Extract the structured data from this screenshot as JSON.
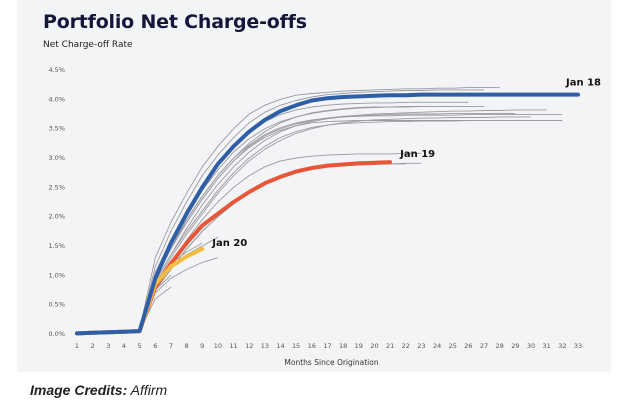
{
  "caption": {
    "prefix": "Image Credits:",
    "source": " Affirm"
  },
  "chart_data": {
    "type": "line",
    "title": "Portfolio Net Charge-offs",
    "subtitle": "Net Charge-off Rate",
    "xlabel": "Months Since Origination",
    "ylabel": "Net Charge-off Rate",
    "x_ticks": [
      "1",
      "2",
      "3",
      "4",
      "5",
      "6",
      "7",
      "8",
      "9",
      "10",
      "11",
      "12",
      "13",
      "14",
      "15",
      "16",
      "17",
      "18",
      "19",
      "20",
      "21",
      "22",
      "23",
      "24",
      "25",
      "26",
      "27",
      "28",
      "29",
      "30",
      "31",
      "32",
      "33"
    ],
    "y_ticks": [
      "0.0%",
      "0.5%",
      "1.0%",
      "1.5%",
      "2.0%",
      "2.5%",
      "3.0%",
      "3.5%",
      "4.0%",
      "4.5%"
    ],
    "xlim": [
      1,
      33
    ],
    "ylim": [
      0,
      4.5
    ],
    "grid": false,
    "series": [
      {
        "name": "Jan 18",
        "color": "#2f5ea8",
        "highlight": true,
        "x": [
          1,
          2,
          3,
          4,
          5,
          6,
          7,
          8,
          9,
          10,
          11,
          12,
          13,
          14,
          15,
          16,
          17,
          18,
          19,
          20,
          21,
          22,
          23,
          24,
          25,
          26,
          27,
          28,
          29,
          30,
          31,
          32,
          33
        ],
        "y": [
          0.01,
          0.02,
          0.03,
          0.04,
          0.05,
          0.95,
          1.55,
          2.05,
          2.5,
          2.9,
          3.2,
          3.45,
          3.65,
          3.8,
          3.9,
          3.98,
          4.02,
          4.04,
          4.05,
          4.06,
          4.07,
          4.07,
          4.08,
          4.08,
          4.08,
          4.08,
          4.08,
          4.08,
          4.08,
          4.08,
          4.08,
          4.08,
          4.08
        ]
      },
      {
        "name": "Jan 19",
        "color": "#e8563a",
        "highlight": true,
        "x": [
          1,
          2,
          3,
          4,
          5,
          6,
          7,
          8,
          9,
          10,
          11,
          12,
          13,
          14,
          15,
          16,
          17,
          18,
          19,
          20,
          21
        ],
        "y": [
          0.01,
          0.02,
          0.03,
          0.04,
          0.05,
          0.8,
          1.2,
          1.55,
          1.85,
          2.05,
          2.25,
          2.42,
          2.57,
          2.68,
          2.77,
          2.83,
          2.87,
          2.89,
          2.91,
          2.92,
          2.93
        ]
      },
      {
        "name": "Jan 20",
        "color": "#f3bd3f",
        "highlight": true,
        "x": [
          1,
          2,
          3,
          4,
          5,
          6,
          7,
          8,
          9
        ],
        "y": [
          0.01,
          0.02,
          0.03,
          0.04,
          0.05,
          0.85,
          1.15,
          1.32,
          1.45
        ]
      },
      {
        "color": "#9a9ba0",
        "x": [
          1,
          2,
          3,
          4,
          5,
          6,
          7,
          8,
          9,
          10,
          11,
          12,
          13,
          14,
          15,
          16,
          17,
          18,
          19,
          20,
          21,
          22,
          23,
          24,
          25,
          26,
          27,
          28
        ],
        "y": [
          0.01,
          0.02,
          0.03,
          0.05,
          0.08,
          1.3,
          1.9,
          2.4,
          2.85,
          3.2,
          3.5,
          3.75,
          3.9,
          4.0,
          4.07,
          4.1,
          4.12,
          4.14,
          4.15,
          4.16,
          4.17,
          4.18,
          4.18,
          4.19,
          4.19,
          4.2,
          4.2,
          4.2
        ]
      },
      {
        "color": "#9a9ba0",
        "x": [
          1,
          2,
          3,
          4,
          5,
          6,
          7,
          8,
          9,
          10,
          11,
          12,
          13,
          14,
          15,
          16,
          17,
          18,
          19,
          20,
          21,
          22,
          23,
          24,
          25,
          26,
          27
        ],
        "y": [
          0.01,
          0.02,
          0.03,
          0.05,
          0.07,
          1.15,
          1.75,
          2.25,
          2.7,
          3.05,
          3.35,
          3.6,
          3.78,
          3.9,
          3.98,
          4.04,
          4.08,
          4.1,
          4.12,
          4.13,
          4.14,
          4.15,
          4.15,
          4.16,
          4.16,
          4.16,
          4.16
        ]
      },
      {
        "color": "#9a9ba0",
        "x": [
          1,
          2,
          3,
          4,
          5,
          6,
          7,
          8,
          9,
          10,
          11,
          12,
          13,
          14,
          15,
          16,
          17,
          18,
          19,
          20,
          21,
          22,
          23,
          24,
          25,
          26,
          27,
          28,
          29,
          30,
          31,
          32
        ],
        "y": [
          0.01,
          0.02,
          0.03,
          0.04,
          0.06,
          1.0,
          1.5,
          1.95,
          2.35,
          2.7,
          3.0,
          3.22,
          3.4,
          3.52,
          3.6,
          3.65,
          3.68,
          3.7,
          3.71,
          3.72,
          3.72,
          3.73,
          3.73,
          3.73,
          3.73,
          3.74,
          3.74,
          3.74,
          3.74,
          3.74,
          3.74,
          3.74
        ]
      },
      {
        "color": "#9a9ba0",
        "x": [
          1,
          2,
          3,
          4,
          5,
          6,
          7,
          8,
          9,
          10,
          11,
          12,
          13,
          14,
          15,
          16,
          17,
          18,
          19,
          20,
          21,
          22,
          23,
          24,
          25,
          26,
          27,
          28,
          29,
          30,
          31
        ],
        "y": [
          0.01,
          0.02,
          0.03,
          0.04,
          0.06,
          0.95,
          1.45,
          1.9,
          2.3,
          2.65,
          2.95,
          3.2,
          3.38,
          3.5,
          3.58,
          3.64,
          3.68,
          3.71,
          3.73,
          3.75,
          3.76,
          3.77,
          3.78,
          3.79,
          3.8,
          3.8,
          3.81,
          3.81,
          3.82,
          3.82,
          3.82
        ]
      },
      {
        "color": "#9a9ba0",
        "x": [
          1,
          2,
          3,
          4,
          5,
          6,
          7,
          8,
          9,
          10,
          11,
          12,
          13,
          14,
          15,
          16,
          17,
          18,
          19,
          20,
          21,
          22,
          23,
          24,
          25,
          26,
          27,
          28,
          29,
          30
        ],
        "y": [
          0.01,
          0.02,
          0.03,
          0.04,
          0.06,
          0.9,
          1.35,
          1.75,
          2.1,
          2.45,
          2.75,
          3.0,
          3.2,
          3.35,
          3.45,
          3.52,
          3.56,
          3.59,
          3.6,
          3.61,
          3.62,
          3.62,
          3.63,
          3.63,
          3.63,
          3.64,
          3.64,
          3.64,
          3.64,
          3.64
        ]
      },
      {
        "color": "#9a9ba0",
        "x": [
          1,
          2,
          3,
          4,
          5,
          6,
          7,
          8,
          9,
          10,
          11,
          12,
          13,
          14,
          15,
          16,
          17,
          18,
          19,
          20,
          21,
          22,
          23,
          24,
          25,
          26
        ],
        "y": [
          0.01,
          0.02,
          0.03,
          0.04,
          0.06,
          1.05,
          1.6,
          2.1,
          2.55,
          2.9,
          3.2,
          3.45,
          3.62,
          3.74,
          3.82,
          3.87,
          3.9,
          3.92,
          3.93,
          3.94,
          3.94,
          3.95,
          3.95,
          3.95,
          3.95,
          3.95
        ]
      },
      {
        "color": "#9a9ba0",
        "x": [
          1,
          2,
          3,
          4,
          5,
          6,
          7,
          8,
          9,
          10,
          11,
          12,
          13,
          14,
          15,
          16,
          17,
          18,
          19,
          20,
          21,
          22,
          23,
          24,
          25,
          26,
          27,
          28,
          29,
          30
        ],
        "y": [
          0.01,
          0.02,
          0.03,
          0.04,
          0.06,
          0.85,
          1.3,
          1.7,
          2.05,
          2.4,
          2.7,
          2.95,
          3.15,
          3.3,
          3.42,
          3.5,
          3.56,
          3.6,
          3.63,
          3.65,
          3.66,
          3.67,
          3.68,
          3.68,
          3.69,
          3.69,
          3.69,
          3.7,
          3.7,
          3.7
        ]
      },
      {
        "color": "#9a9ba0",
        "x": [
          1,
          2,
          3,
          4,
          5,
          6,
          7,
          8,
          9,
          10,
          11,
          12,
          13,
          14,
          15,
          16,
          17,
          18,
          19,
          20,
          21,
          22,
          23,
          24,
          25
        ],
        "y": [
          0.01,
          0.02,
          0.03,
          0.04,
          0.06,
          0.95,
          1.45,
          1.95,
          2.35,
          2.7,
          3.0,
          3.25,
          3.45,
          3.6,
          3.7,
          3.77,
          3.81,
          3.84,
          3.86,
          3.87,
          3.87,
          3.88,
          3.88,
          3.88,
          3.88
        ]
      },
      {
        "color": "#9a9ba0",
        "x": [
          1,
          2,
          3,
          4,
          5,
          6,
          7,
          8,
          9,
          10,
          11,
          12,
          13,
          14,
          15,
          16,
          17,
          18,
          19,
          20,
          21,
          22,
          23,
          24,
          25,
          26,
          27,
          28,
          29
        ],
        "y": [
          0.01,
          0.02,
          0.03,
          0.04,
          0.06,
          0.9,
          1.35,
          1.8,
          2.2,
          2.55,
          2.85,
          3.1,
          3.3,
          3.45,
          3.55,
          3.62,
          3.67,
          3.7,
          3.72,
          3.73,
          3.74,
          3.75,
          3.75,
          3.75,
          3.76,
          3.76,
          3.76,
          3.76,
          3.76
        ]
      },
      {
        "color": "#9a9ba0",
        "x": [
          1,
          2,
          3,
          4,
          5,
          6,
          7,
          8,
          9,
          10,
          11,
          12,
          13,
          14,
          15,
          16,
          17,
          18,
          19,
          20,
          21,
          22,
          23,
          24,
          25,
          26,
          27
        ],
        "y": [
          0.01,
          0.02,
          0.03,
          0.04,
          0.06,
          1.0,
          1.5,
          2.0,
          2.45,
          2.8,
          3.1,
          3.33,
          3.5,
          3.62,
          3.7,
          3.76,
          3.8,
          3.83,
          3.85,
          3.86,
          3.87,
          3.87,
          3.88,
          3.88,
          3.88,
          3.88,
          3.88
        ]
      },
      {
        "color": "#9a9ba0",
        "x": [
          1,
          2,
          3,
          4,
          5,
          6,
          7,
          8,
          9,
          10,
          11,
          12,
          13,
          14,
          15,
          16,
          17,
          18,
          19,
          20,
          21,
          22
        ],
        "y": [
          0.01,
          0.02,
          0.03,
          0.04,
          0.06,
          0.75,
          1.1,
          1.45,
          1.75,
          2.0,
          2.22,
          2.4,
          2.55,
          2.67,
          2.75,
          2.81,
          2.85,
          2.87,
          2.88,
          2.89,
          2.9,
          2.9
        ]
      },
      {
        "color": "#9a9ba0",
        "x": [
          1,
          2,
          3,
          4,
          5,
          6,
          7,
          8,
          9,
          10,
          11,
          12,
          13,
          14,
          15,
          16,
          17,
          18,
          19,
          20,
          21,
          22,
          23
        ],
        "y": [
          0.01,
          0.02,
          0.03,
          0.04,
          0.06,
          0.8,
          1.2,
          1.6,
          1.95,
          2.25,
          2.5,
          2.7,
          2.85,
          2.95,
          3.0,
          3.03,
          3.05,
          3.06,
          3.07,
          3.07,
          3.07,
          3.08,
          3.08
        ]
      },
      {
        "color": "#9a9ba0",
        "x": [
          1,
          2,
          3,
          4,
          5,
          6,
          7,
          8,
          9,
          10,
          11,
          12,
          13,
          14,
          15,
          16,
          17,
          18,
          19,
          20,
          21,
          22,
          23
        ],
        "y": [
          0.01,
          0.02,
          0.03,
          0.04,
          0.06,
          0.75,
          1.1,
          1.45,
          1.75,
          2.0,
          2.22,
          2.42,
          2.58,
          2.7,
          2.78,
          2.83,
          2.86,
          2.88,
          2.89,
          2.9,
          2.9,
          2.91,
          2.91
        ]
      },
      {
        "color": "#9a9ba0",
        "x": [
          1,
          2,
          3,
          4,
          5,
          6,
          7,
          8,
          9,
          10
        ],
        "y": [
          0.01,
          0.02,
          0.03,
          0.04,
          0.06,
          0.85,
          1.15,
          1.35,
          1.5,
          1.65
        ]
      },
      {
        "color": "#9a9ba0",
        "x": [
          1,
          2,
          3,
          4,
          5,
          6,
          7,
          8,
          9,
          10
        ],
        "y": [
          0.01,
          0.02,
          0.03,
          0.04,
          0.06,
          0.7,
          0.95,
          1.1,
          1.22,
          1.3
        ]
      },
      {
        "color": "#9a9ba0",
        "x": [
          1,
          2,
          3,
          4,
          5,
          6,
          7,
          8,
          9
        ],
        "y": [
          0.01,
          0.02,
          0.03,
          0.04,
          0.06,
          0.9,
          1.2,
          1.4,
          1.55
        ]
      },
      {
        "color": "#9a9ba0",
        "x": [
          1,
          2,
          3,
          4,
          5,
          6,
          7
        ],
        "y": [
          0.01,
          0.02,
          0.03,
          0.04,
          0.06,
          0.6,
          0.8
        ]
      },
      {
        "color": "#9a9ba0",
        "x": [
          1,
          2,
          3,
          4,
          5,
          6,
          7
        ],
        "y": [
          0.01,
          0.02,
          0.03,
          0.04,
          0.06,
          0.75,
          1.0
        ]
      },
      {
        "color": "#9a9ba0",
        "x": [
          1,
          2,
          3,
          4,
          5,
          6,
          7,
          8,
          9,
          10,
          11,
          12,
          13,
          14,
          15,
          16,
          17,
          18,
          19,
          20,
          21,
          22,
          23,
          24,
          25,
          26,
          27,
          28,
          29,
          30,
          31,
          32
        ],
        "y": [
          0.01,
          0.02,
          0.03,
          0.04,
          0.06,
          0.95,
          1.45,
          1.9,
          2.3,
          2.65,
          2.95,
          3.18,
          3.35,
          3.47,
          3.55,
          3.6,
          3.62,
          3.63,
          3.64,
          3.64,
          3.64,
          3.64,
          3.64,
          3.64,
          3.64,
          3.64,
          3.64,
          3.64,
          3.64,
          3.64,
          3.64,
          3.64
        ]
      }
    ]
  }
}
